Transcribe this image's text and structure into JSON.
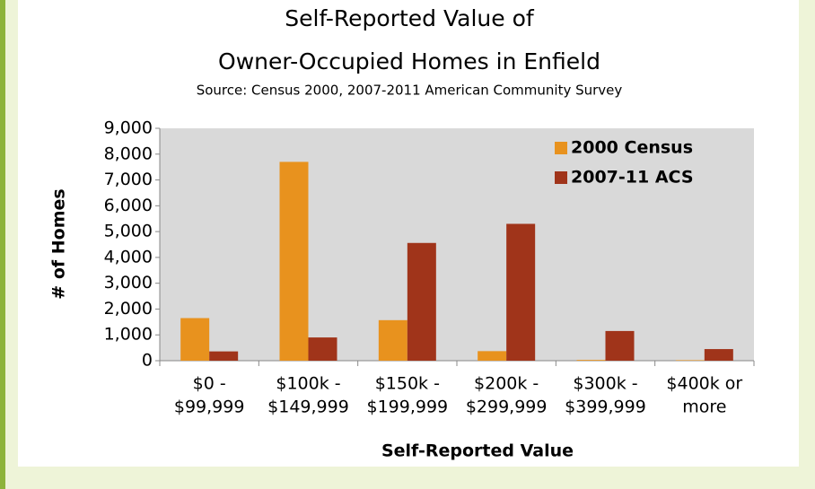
{
  "chart_data": {
    "type": "bar",
    "title": [
      "Self-Reported Value of",
      "Owner-Occupied Homes in Enfield"
    ],
    "subtitle": "Source: Census 2000, 2007-2011 American Community Survey",
    "x_label": "Self-Reported Value",
    "y_label": "# of Homes",
    "categories": [
      [
        "$0 -",
        "$99,999"
      ],
      [
        "$100k -",
        "$149,999"
      ],
      [
        "$150k -",
        "$199,999"
      ],
      [
        "$200k -",
        "$299,999"
      ],
      [
        "$300k -",
        "$399,999"
      ],
      [
        "$400k or",
        "more"
      ]
    ],
    "series": [
      {
        "name": "2000 Census",
        "color": "#e8921e",
        "values": [
          1650,
          7700,
          1570,
          370,
          30,
          20
        ]
      },
      {
        "name": "2007-11 ACS",
        "color": "#a0341a",
        "values": [
          360,
          900,
          4560,
          5300,
          1150,
          450
        ]
      }
    ],
    "ylim": [
      0,
      9000
    ],
    "yticks": [
      0,
      {
        "value": 1000,
        "label": "1,000"
      },
      {
        "value": 2000,
        "label": "2,000"
      },
      {
        "value": 3000,
        "label": "3,000"
      },
      {
        "value": 4000,
        "label": "4,000"
      },
      {
        "value": 5000,
        "label": "5,000"
      },
      {
        "value": 6000,
        "label": "6,000"
      },
      {
        "value": 7000,
        "label": "7,000"
      },
      {
        "value": 8000,
        "label": "8,000"
      },
      {
        "value": 9000,
        "label": "9,000"
      }
    ],
    "legend": "top-right"
  }
}
